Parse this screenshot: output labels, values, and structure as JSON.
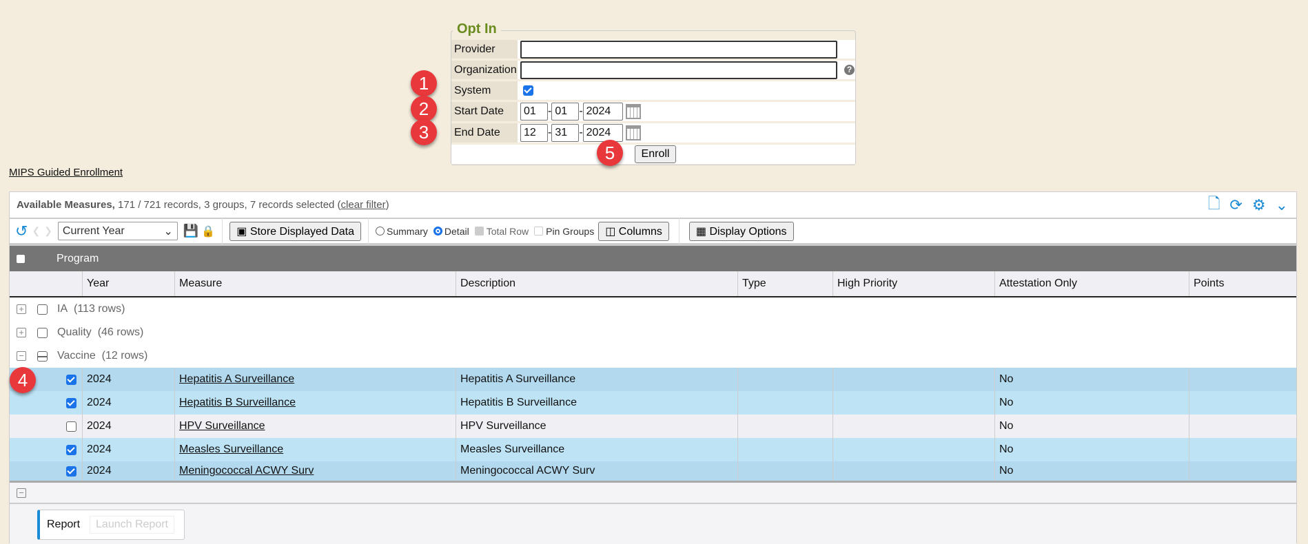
{
  "optin": {
    "title": "Opt In",
    "provider_label": "Provider",
    "provider_value": "",
    "organization_label": "Organization",
    "organization_value": "",
    "system_label": "System",
    "system_checked": true,
    "start_label": "Start Date",
    "start": {
      "mm": "01",
      "dd": "01",
      "yyyy": "2024"
    },
    "end_label": "End Date",
    "end": {
      "mm": "12",
      "dd": "31",
      "yyyy": "2024"
    },
    "enroll_label": "Enroll",
    "sep": "-"
  },
  "badges": [
    "1",
    "2",
    "3",
    "4",
    "5"
  ],
  "mips_link": "MIPS Guided Enrollment",
  "panel": {
    "title": "Available Measures,",
    "summary": "171 / 721 records, 3 groups, 7 records selected (",
    "clear_filter": "clear filter",
    "summary_end": ")"
  },
  "toolbar": {
    "view": "Current Year",
    "store": "Store Displayed Data",
    "summary": "Summary",
    "detail": "Detail",
    "view_mode": "Detail",
    "total_row": "Total Row",
    "pin_groups": "Pin Groups",
    "columns": "Columns",
    "display_options": "Display Options"
  },
  "group_by": "Program",
  "columns": [
    "Year",
    "Measure",
    "Description",
    "Type",
    "High Priority",
    "Attestation Only",
    "Points"
  ],
  "groups": [
    {
      "name": "IA",
      "count": "(113 rows)",
      "expanded": false
    },
    {
      "name": "Quality",
      "count": "(46 rows)",
      "expanded": false
    },
    {
      "name": "Vaccine",
      "count": "(12 rows)",
      "expanded": true
    }
  ],
  "rows": [
    {
      "checked": true,
      "year": "2024",
      "measure": "Hepatitis A Surveillance",
      "description": "Hepatitis A Surveillance",
      "type": "",
      "high_priority": "",
      "attestation": "No",
      "points": ""
    },
    {
      "checked": true,
      "year": "2024",
      "measure": "Hepatitis B Surveillance",
      "description": "Hepatitis B Surveillance",
      "type": "",
      "high_priority": "",
      "attestation": "No",
      "points": ""
    },
    {
      "checked": false,
      "year": "2024",
      "measure": "HPV Surveillance",
      "description": "HPV Surveillance",
      "type": "",
      "high_priority": "",
      "attestation": "No",
      "points": ""
    },
    {
      "checked": true,
      "year": "2024",
      "measure": "Measles Surveillance",
      "description": "Measles Surveillance",
      "type": "",
      "high_priority": "",
      "attestation": "No",
      "points": ""
    },
    {
      "checked": true,
      "year": "2024",
      "measure": "Meningococcal ACWY Surv",
      "description": "Meningococcal ACWY Surv",
      "type": "",
      "high_priority": "",
      "attestation": "No",
      "points": ""
    }
  ],
  "report": {
    "tab": "Report",
    "launch": "Launch Report"
  },
  "colors": {
    "accent": "#1a8ad4",
    "badge": "#e8383c",
    "legend": "#6a8c1e",
    "selected_row": "#bde3f4"
  }
}
